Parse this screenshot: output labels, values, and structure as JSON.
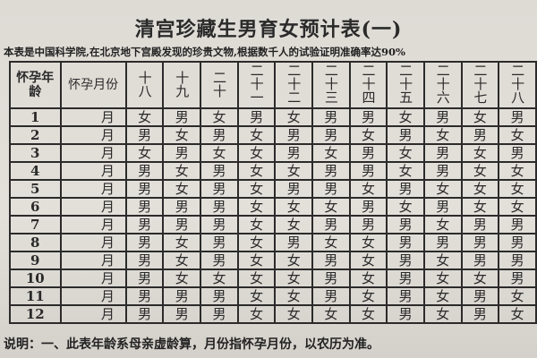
{
  "title": "清宫珍藏生男育女预计表(一)",
  "subtitle": "本表是中国科学院,在北京地下宫殿发现的珍贵文物,根据数千人的试验证明准确率达90%",
  "header": {
    "age_label": "怀孕年龄",
    "month_label": "怀孕月份"
  },
  "ages": [
    "十八",
    "十九",
    "二十",
    "二十一",
    "二十二",
    "二十三",
    "二十四",
    "二十五",
    "二十六",
    "二十七",
    "二十八"
  ],
  "month_unit": "月",
  "rows": [
    {
      "month": "1",
      "cells": [
        "女",
        "男",
        "女",
        "男",
        "女",
        "男",
        "男",
        "女",
        "男",
        "女",
        "男"
      ]
    },
    {
      "month": "2",
      "cells": [
        "男",
        "女",
        "男",
        "女",
        "男",
        "男",
        "女",
        "男",
        "女",
        "男",
        "女"
      ]
    },
    {
      "month": "3",
      "cells": [
        "女",
        "男",
        "女",
        "女",
        "男",
        "女",
        "男",
        "女",
        "男",
        "女",
        "男"
      ]
    },
    {
      "month": "4",
      "cells": [
        "男",
        "女",
        "男",
        "女",
        "女",
        "男",
        "男",
        "女",
        "男",
        "女",
        "女"
      ]
    },
    {
      "month": "5",
      "cells": [
        "男",
        "女",
        "男",
        "女",
        "男",
        "男",
        "女",
        "男",
        "女",
        "女",
        "女"
      ]
    },
    {
      "month": "6",
      "cells": [
        "男",
        "男",
        "男",
        "女",
        "女",
        "女",
        "男",
        "女",
        "男",
        "女",
        "女"
      ]
    },
    {
      "month": "7",
      "cells": [
        "男",
        "男",
        "男",
        "女",
        "女",
        "男",
        "男",
        "男",
        "女",
        "男",
        "男"
      ]
    },
    {
      "month": "8",
      "cells": [
        "男",
        "女",
        "男",
        "女",
        "男",
        "女",
        "女",
        "男",
        "男",
        "男",
        "男"
      ]
    },
    {
      "month": "9",
      "cells": [
        "男",
        "女",
        "男",
        "女",
        "女",
        "男",
        "女",
        "男",
        "女",
        "男",
        "男"
      ]
    },
    {
      "month": "10",
      "cells": [
        "男",
        "女",
        "女",
        "女",
        "女",
        "男",
        "女",
        "男",
        "女",
        "女",
        "男"
      ]
    },
    {
      "month": "11",
      "cells": [
        "男",
        "男",
        "男",
        "女",
        "女",
        "男",
        "女",
        "男",
        "女",
        "男",
        "女"
      ]
    },
    {
      "month": "12",
      "cells": [
        "男",
        "男",
        "男",
        "女",
        "女",
        "女",
        "女",
        "男",
        "女",
        "男",
        "女"
      ]
    }
  ],
  "footer": "说明：一、此表年龄系母亲虚龄算，月份指怀孕月份，以农历为准。"
}
